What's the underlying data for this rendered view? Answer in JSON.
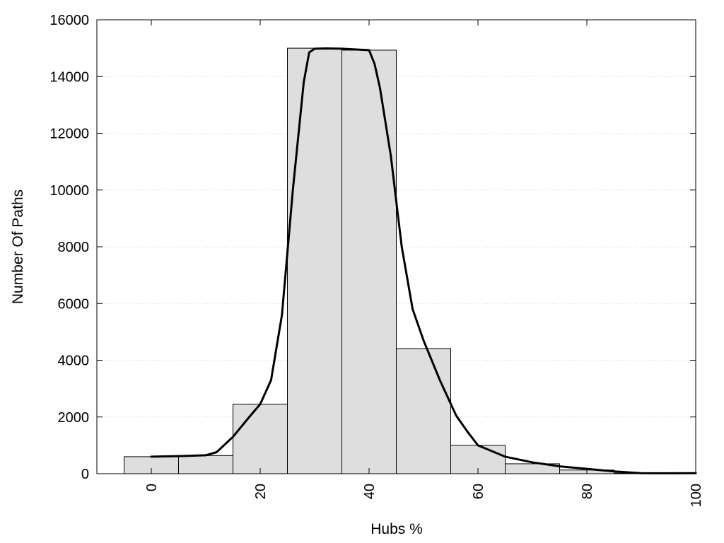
{
  "chart_data": {
    "type": "bar",
    "xlabel": "Hubs %",
    "ylabel": "Number Of Paths",
    "xlim": [
      -10,
      100
    ],
    "ylim": [
      0,
      16000
    ],
    "x_ticks": [
      0,
      20,
      40,
      60,
      80,
      100
    ],
    "y_ticks": [
      0,
      2000,
      4000,
      6000,
      8000,
      10000,
      12000,
      14000,
      16000
    ],
    "grid": "horizontal-dotted",
    "bar_width": 10,
    "bars": [
      {
        "x": 0,
        "value": 600
      },
      {
        "x": 10,
        "value": 640
      },
      {
        "x": 20,
        "value": 2450
      },
      {
        "x": 30,
        "value": 15000
      },
      {
        "x": 40,
        "value": 14930
      },
      {
        "x": 50,
        "value": 4410
      },
      {
        "x": 60,
        "value": 1000
      },
      {
        "x": 70,
        "value": 350
      },
      {
        "x": 80,
        "value": 130
      },
      {
        "x": 90,
        "value": 20
      }
    ],
    "curve": {
      "x": [
        0,
        5,
        10,
        12,
        15,
        18,
        20,
        22,
        24,
        26,
        28,
        29,
        30,
        32,
        35,
        38,
        40,
        41,
        42,
        44,
        46,
        48,
        50,
        53,
        56,
        58,
        60,
        65,
        70,
        75,
        80,
        85,
        90,
        95,
        100
      ],
      "y": [
        600,
        620,
        650,
        760,
        1300,
        2000,
        2450,
        3300,
        5600,
        10000,
        13800,
        14850,
        14980,
        14990,
        14980,
        14950,
        14930,
        14450,
        13600,
        11200,
        8000,
        5800,
        4700,
        3300,
        2050,
        1500,
        1000,
        600,
        400,
        260,
        170,
        80,
        20,
        15,
        20
      ]
    }
  }
}
